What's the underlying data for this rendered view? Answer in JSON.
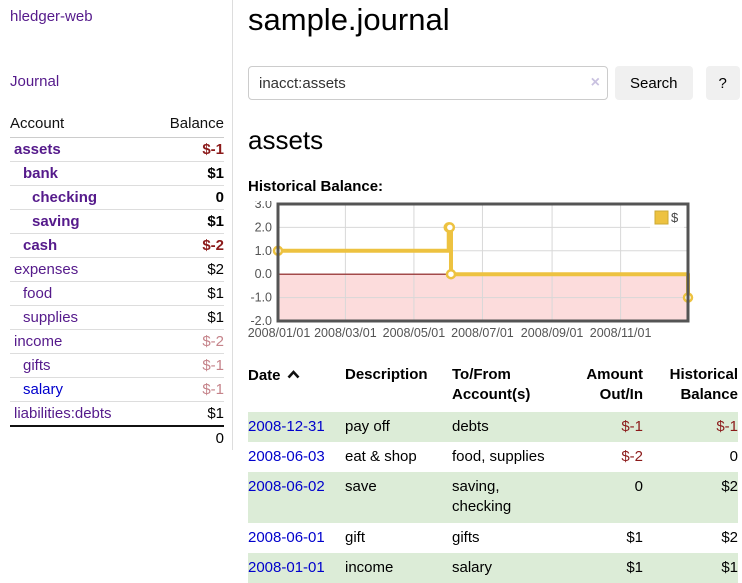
{
  "app": {
    "title": "hledger-web"
  },
  "sidebar": {
    "journal_link": "Journal",
    "accounts_table": {
      "headers": [
        "Account",
        "Balance"
      ],
      "rows": [
        {
          "name": "assets",
          "indent": 1,
          "inacct": true,
          "link_color": "purple",
          "balance": "$-1",
          "balance_class": "neg-strong"
        },
        {
          "name": "bank",
          "indent": 2,
          "inacct": true,
          "link_color": "purple",
          "balance": "$1",
          "balance_class": ""
        },
        {
          "name": "checking",
          "indent": 3,
          "inacct": true,
          "link_color": "purple",
          "balance": "0",
          "balance_class": ""
        },
        {
          "name": "saving",
          "indent": 3,
          "inacct": true,
          "link_color": "purple",
          "balance": "$1",
          "balance_class": ""
        },
        {
          "name": "cash",
          "indent": 2,
          "inacct": true,
          "link_color": "purple",
          "balance": "$-2",
          "balance_class": "neg-strong"
        },
        {
          "name": "expenses",
          "indent": 1,
          "inacct": false,
          "link_color": "purple",
          "balance": "$2",
          "balance_class": ""
        },
        {
          "name": "food",
          "indent": 2,
          "inacct": false,
          "link_color": "purple",
          "balance": "$1",
          "balance_class": ""
        },
        {
          "name": "supplies",
          "indent": 2,
          "inacct": false,
          "link_color": "purple",
          "balance": "$1",
          "balance_class": ""
        },
        {
          "name": "income",
          "indent": 1,
          "inacct": false,
          "link_color": "purple",
          "balance": "$-2",
          "balance_class": "neg-faded"
        },
        {
          "name": "gifts",
          "indent": 2,
          "inacct": false,
          "link_color": "purple",
          "balance": "$-1",
          "balance_class": "neg-faded"
        },
        {
          "name": "salary",
          "indent": 2,
          "inacct": false,
          "link_color": "blue",
          "balance": "$-1",
          "balance_class": "neg-faded"
        },
        {
          "name": "liabilities:debts",
          "indent": 1,
          "inacct": false,
          "link_color": "purple",
          "balance": "$1",
          "balance_class": ""
        }
      ],
      "total": "0"
    }
  },
  "header": {
    "title": "sample.journal"
  },
  "search": {
    "value": "inacct:assets",
    "clear_icon": "×",
    "search_label": "Search",
    "help_label": "?"
  },
  "account_page": {
    "heading": "assets",
    "chart_label": "Historical Balance:"
  },
  "chart_data": {
    "type": "line",
    "subtype": "step",
    "title": "Historical Balance:",
    "legend_entries": [
      "$"
    ],
    "legend_position": "top-right",
    "grid": true,
    "ylim": [
      -2.0,
      3.0
    ],
    "yticks": [
      -2.0,
      -1.0,
      0.0,
      1.0,
      2.0,
      3.0
    ],
    "ytick_labels": [
      "-2.0",
      "-1.0",
      "0.0",
      "1.0",
      "2.0",
      "3.0"
    ],
    "xtick_labels": [
      "2008/01/01",
      "2008/03/01",
      "2008/05/01",
      "2008/07/01",
      "2008/09/01",
      "2008/11/01"
    ],
    "xtick_days": [
      0,
      60,
      121,
      182,
      244,
      305
    ],
    "x_range_days": [
      0,
      365
    ],
    "series": [
      {
        "name": "$",
        "points": [
          {
            "date": "2008-01-01",
            "day": 0,
            "value": 1
          },
          {
            "date": "2008-06-01",
            "day": 152,
            "value": 2
          },
          {
            "date": "2008-06-02",
            "day": 153,
            "value": 2
          },
          {
            "date": "2008-06-03",
            "day": 154,
            "value": 0
          },
          {
            "date": "2008-12-31",
            "day": 365,
            "value": -1
          }
        ]
      }
    ],
    "colors": {
      "line": "#edc240",
      "marker_fill": "#ffffff",
      "negative_region": "#fcdcdc",
      "zero_line": "#8b1a1a",
      "border": "#545454",
      "grid_line": "#d8d8d8",
      "tick_text": "#545454",
      "legend_box_border": "#ccaa33"
    }
  },
  "transactions": {
    "headers": [
      "Date",
      "Description",
      "To/From\nAccount(s)",
      "Amount\nOut/In",
      "Historical\nBalance"
    ],
    "sort_icon": "chevron-up",
    "rows": [
      {
        "date": "2008-12-31",
        "description": "pay off",
        "accounts": "debts",
        "amount": "$-1",
        "amount_neg": true,
        "balance": "$-1",
        "balance_neg": true,
        "shaded": true
      },
      {
        "date": "2008-06-03",
        "description": "eat & shop",
        "accounts": "food, supplies",
        "amount": "$-2",
        "amount_neg": true,
        "balance": "0",
        "balance_neg": false,
        "shaded": false
      },
      {
        "date": "2008-06-02",
        "description": "save",
        "accounts": "saving, checking",
        "amount": "0",
        "amount_neg": false,
        "balance": "$2",
        "balance_neg": false,
        "shaded": true
      },
      {
        "date": "2008-06-01",
        "description": "gift",
        "accounts": "gifts",
        "amount": "$1",
        "amount_neg": false,
        "balance": "$2",
        "balance_neg": false,
        "shaded": false
      },
      {
        "date": "2008-01-01",
        "description": "income",
        "accounts": "salary",
        "amount": "$1",
        "amount_neg": false,
        "balance": "$1",
        "balance_neg": false,
        "shaded": true
      }
    ]
  },
  "colors": {
    "link_purple": "#551a8b",
    "link_blue": "#0000cc",
    "negative_strong": "#8b1a1a",
    "negative_faded": "#c5838a",
    "row_stripe_green": "#dcecd7",
    "divider": "#dddddd"
  }
}
